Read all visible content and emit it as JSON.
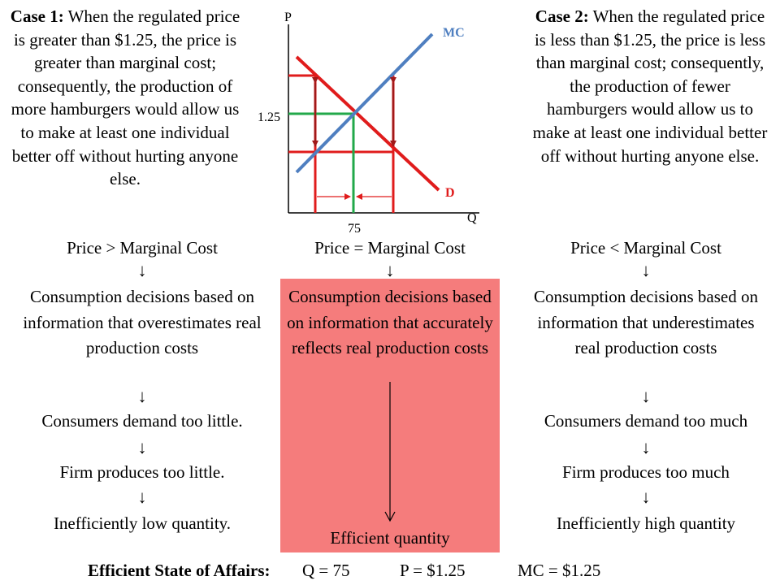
{
  "case1": {
    "heading": "Case 1:",
    "text": "When the regulated price is greater than $1.25, the price is greater than marginal cost; consequently, the production of more hamburgers would allow us to make at least one individual better off without hurting anyone else."
  },
  "case2": {
    "heading": "Case 2:",
    "text": "When the regulated price is less than $1.25, the price is less than marginal cost; consequently, the production of fewer hamburgers would allow us to make at least one individual better off without hurting anyone else."
  },
  "graph": {
    "p_axis_label": "P",
    "q_axis_label": "Q",
    "mc_label": "MC",
    "d_label": "D",
    "price_tick": "1.25",
    "quantity_tick": "75",
    "colors": {
      "mc": "#4f7fc0",
      "demand": "#e01c1c",
      "equilibrium": "#22a84a",
      "arrows": "#a01a1a",
      "label_blue": "#4f7fc0",
      "label_red": "#e01c1c"
    }
  },
  "left_column": {
    "condition": "Price > Marginal Cost",
    "decision": "Consumption decisions based on information that overestimates real production costs",
    "demand": "Consumers demand too little.",
    "supply": "Firm produces too little.",
    "result": "Inefficiently low quantity."
  },
  "middle_column": {
    "condition": "Price = Marginal Cost",
    "decision": "Consumption decisions based on information that accurately reflects real production costs",
    "result": "Efficient quantity",
    "highlight_color": "#f57c7c"
  },
  "right_column": {
    "condition": "Price < Marginal Cost",
    "decision": "Consumption decisions based on information that underestimates real production costs",
    "demand": "Consumers demand too much",
    "supply": "Firm produces too much",
    "result": "Inefficiently high quantity"
  },
  "arrow_glyph": "↓",
  "footer": {
    "label": "Efficient State of Affairs:",
    "q": "Q = 75",
    "p": "P = $1.25",
    "mc": "MC = $1.25"
  }
}
